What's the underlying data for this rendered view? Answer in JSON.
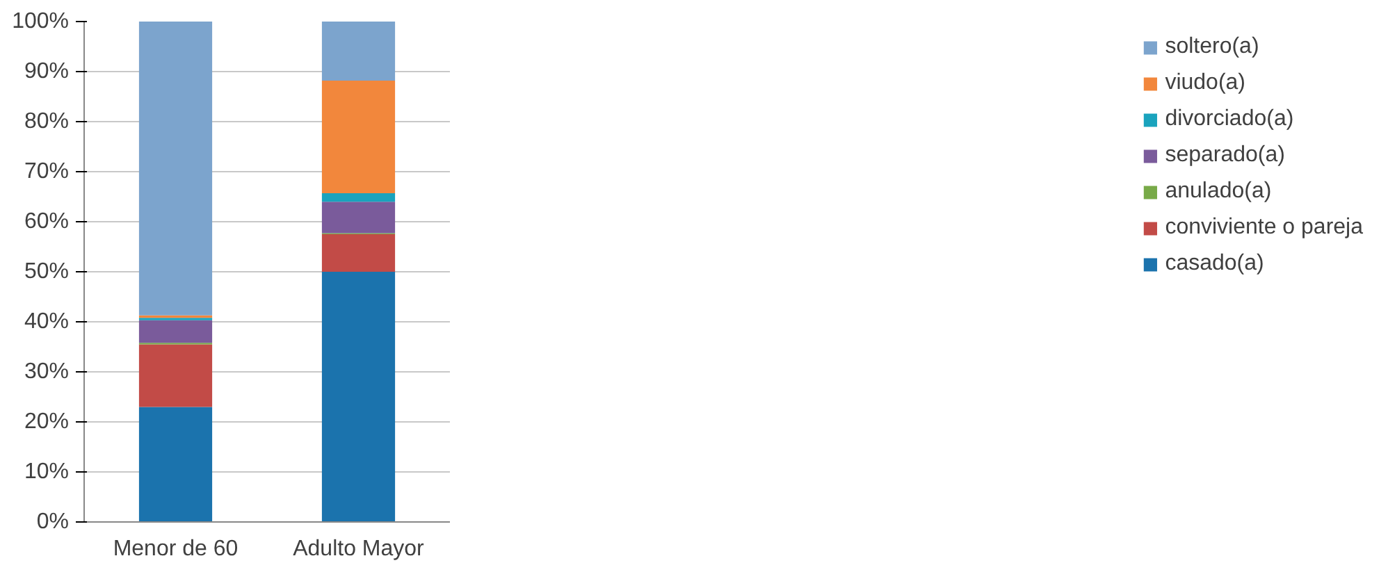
{
  "chart_data": {
    "type": "bar",
    "stacked": true,
    "categories": [
      "Menor de 60",
      "Adulto Mayor"
    ],
    "series": [
      {
        "name": "casado(a)",
        "color": "#1b73ad",
        "values": [
          23,
          50
        ]
      },
      {
        "name": "conviviente o pareja",
        "color": "#c24b47",
        "values": [
          12.5,
          7.5
        ]
      },
      {
        "name": "anulado(a)",
        "color": "#78aa48",
        "values": [
          0.3,
          0.2
        ]
      },
      {
        "name": "separado(a)",
        "color": "#7a5b9b",
        "values": [
          4.5,
          6.3
        ]
      },
      {
        "name": "divorciado(a)",
        "color": "#1aa3bd",
        "values": [
          0.5,
          1.7
        ]
      },
      {
        "name": "viudo(a)",
        "color": "#f2873c",
        "values": [
          0.5,
          22.5
        ]
      },
      {
        "name": "soltero(a)",
        "color": "#7ca4cd",
        "values": [
          58.7,
          11.8
        ]
      }
    ],
    "ylim": [
      0,
      100
    ],
    "yticks": [
      {
        "value": 0,
        "label": "0%"
      },
      {
        "value": 10,
        "label": "10%"
      },
      {
        "value": 20,
        "label": "20%"
      },
      {
        "value": 30,
        "label": "30%"
      },
      {
        "value": 40,
        "label": "40%"
      },
      {
        "value": 50,
        "label": "50%"
      },
      {
        "value": 60,
        "label": "60%"
      },
      {
        "value": 70,
        "label": "70%"
      },
      {
        "value": 80,
        "label": "80%"
      },
      {
        "value": 90,
        "label": "90%"
      },
      {
        "value": 100,
        "label": "100%"
      }
    ],
    "grid": "y",
    "legend": "right"
  }
}
